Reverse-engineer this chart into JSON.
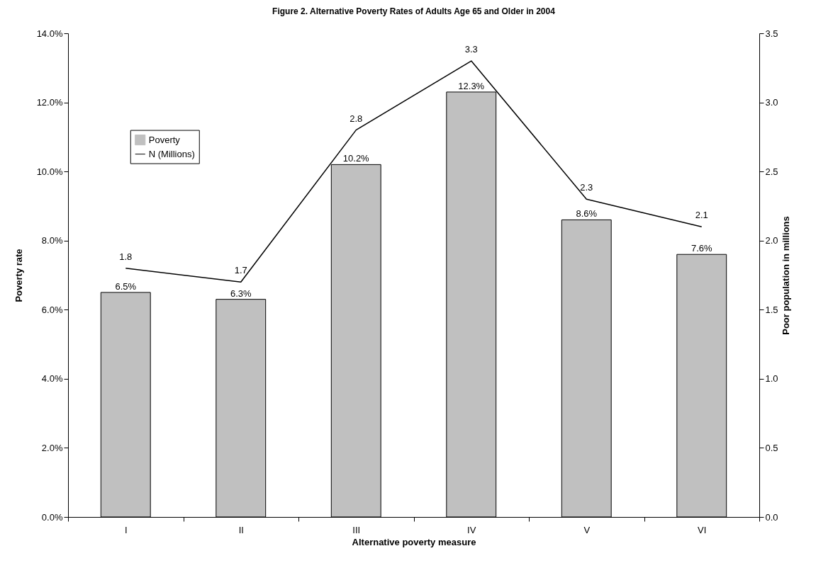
{
  "chart_data": {
    "type": "bar",
    "title": "Figure 2. Alternative Poverty Rates of Adults Age 65 and Older in 2004",
    "xlabel": "Alternative poverty measure",
    "ylabel": "Poverty rate",
    "y2label": "Poor population in millions",
    "categories": [
      "I",
      "II",
      "III",
      "IV",
      "V",
      "VI"
    ],
    "series": [
      {
        "name": "Poverty",
        "color": "#c0c0c0",
        "values": [
          6.5,
          6.3,
          10.2,
          12.3,
          8.6,
          7.6
        ],
        "value_labels": [
          "6.5%",
          "6.3%",
          "10.2%",
          "12.3%",
          "8.6%",
          "7.6%"
        ]
      },
      {
        "name": "N (Millions)",
        "type": "line",
        "axis": "y2",
        "color": "#000000",
        "values": [
          1.8,
          1.7,
          2.8,
          3.3,
          2.3,
          2.1
        ],
        "value_labels": [
          "1.8",
          "1.7",
          "2.8",
          "3.3",
          "2.3",
          "2.1"
        ]
      }
    ],
    "ylim": [
      0,
      14
    ],
    "yticks": [
      {
        "value": 0,
        "label": "0.0%"
      },
      {
        "value": 2,
        "label": "2.0%"
      },
      {
        "value": 4,
        "label": "4.0%"
      },
      {
        "value": 6,
        "label": "6.0%"
      },
      {
        "value": 8,
        "label": "8.0%"
      },
      {
        "value": 10,
        "label": "10.0%"
      },
      {
        "value": 12,
        "label": "12.0%"
      },
      {
        "value": 14,
        "label": "14.0%"
      }
    ],
    "y2lim": [
      0,
      3.5
    ],
    "y2ticks": [
      {
        "value": 0,
        "label": "0.0"
      },
      {
        "value": 0.5,
        "label": "0.5"
      },
      {
        "value": 1,
        "label": "1.0"
      },
      {
        "value": 1.5,
        "label": "1.5"
      },
      {
        "value": 2,
        "label": "2.0"
      },
      {
        "value": 2.5,
        "label": "2.5"
      },
      {
        "value": 3,
        "label": "3.0"
      },
      {
        "value": 3.5,
        "label": "3.5"
      }
    ],
    "legend": "top left",
    "grid": false,
    "marker": "none"
  }
}
